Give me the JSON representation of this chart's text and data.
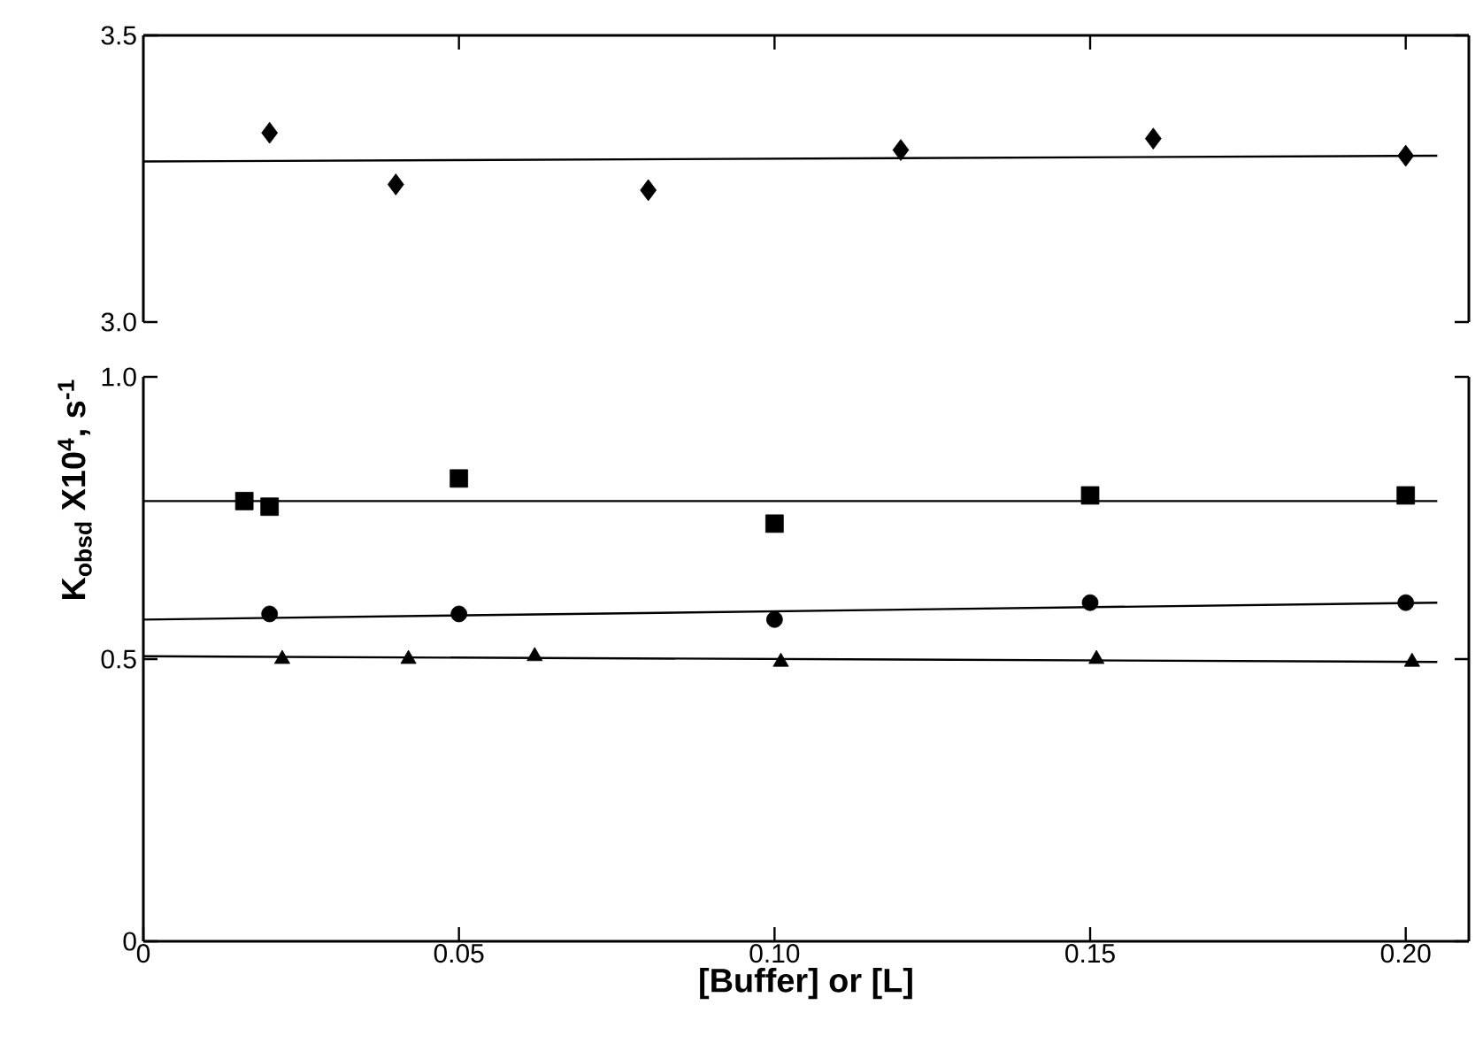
{
  "chart_data": [
    {
      "type": "scatter",
      "xlim": [
        0,
        0.21
      ],
      "xticks": [
        0.05,
        0.1,
        0.15,
        0.2
      ],
      "ylim": [
        3.0,
        3.5
      ],
      "yticks": [
        {
          "value": 3.0,
          "label": "3.0"
        },
        {
          "value": 3.5,
          "label": "3.5"
        }
      ],
      "tick_labels": "y",
      "series": [
        {
          "color": "#000000",
          "marker": "diamond",
          "x": [
            0.02,
            0.04,
            0.08,
            0.12,
            0.16,
            0.2
          ],
          "values": [
            3.33,
            3.24,
            3.23,
            3.3,
            3.32,
            3.29
          ]
        },
        {
          "type": "line",
          "color": "#000000",
          "x": [
            0,
            0.205
          ],
          "values": [
            3.28,
            3.29
          ]
        }
      ]
    },
    {
      "type": "scatter",
      "xlabel": "[Buffer] or [L]",
      "ylabel": "K$_{obsd}$ X10$^{4}$, s$^{-1}$",
      "xlim": [
        0,
        0.21
      ],
      "xticks": [
        0,
        0.05,
        {
          "value": 0.1,
          "label": "0.10"
        },
        0.15,
        {
          "value": 0.2,
          "label": "0.20"
        }
      ],
      "ylim": [
        0,
        1.0
      ],
      "yticks": [
        0,
        0.5,
        {
          "value": 1.0,
          "label": "1.0"
        }
      ],
      "series": [
        {
          "color": "#000000",
          "marker": "square",
          "x": [
            0.016,
            0.02,
            0.05,
            0.1,
            0.15,
            0.2
          ],
          "values": [
            0.78,
            0.77,
            0.82,
            0.74,
            0.79,
            0.79
          ]
        },
        {
          "type": "line",
          "color": "#000000",
          "x": [
            0,
            0.205
          ],
          "values": [
            0.78,
            0.78
          ]
        },
        {
          "color": "#000000",
          "marker": "circle",
          "x": [
            0.02,
            0.05,
            0.1,
            0.15,
            0.2
          ],
          "values": [
            0.58,
            0.58,
            0.57,
            0.6,
            0.6
          ]
        },
        {
          "type": "line",
          "color": "#000000",
          "x": [
            0,
            0.205
          ],
          "values": [
            0.57,
            0.6
          ]
        },
        {
          "color": "#000000",
          "marker": "triangle",
          "x": [
            0.022,
            0.042,
            0.062,
            0.101,
            0.151,
            0.201
          ],
          "values": [
            0.5,
            0.5,
            0.505,
            0.495,
            0.5,
            0.495
          ]
        },
        {
          "type": "line",
          "color": "#000000",
          "x": [
            0,
            0.205
          ],
          "values": [
            0.505,
            0.495
          ]
        }
      ]
    }
  ]
}
